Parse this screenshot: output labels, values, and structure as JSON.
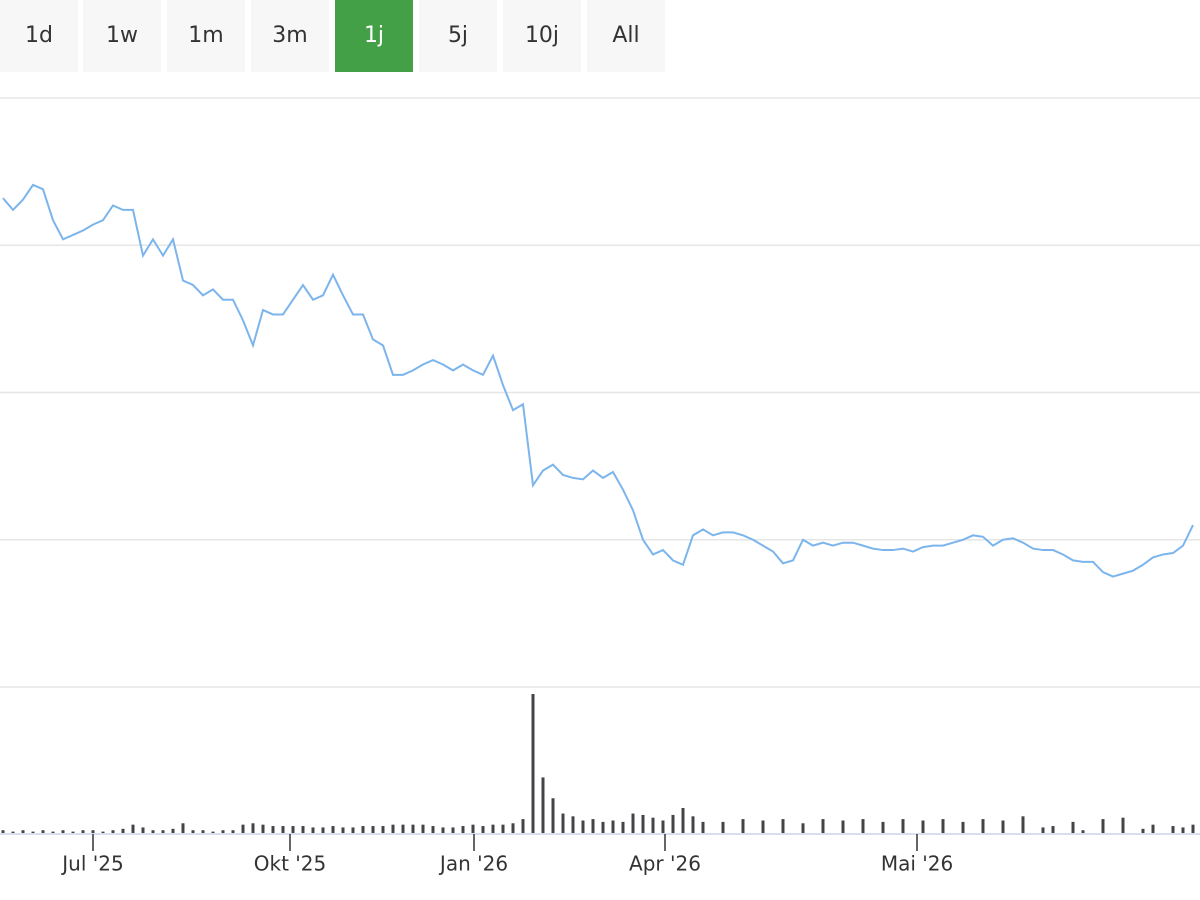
{
  "range_buttons": {
    "labels": [
      "1d",
      "1w",
      "1m",
      "3m",
      "1j",
      "5j",
      "10j",
      "All"
    ],
    "selected": 4
  },
  "chart_data": {
    "type": "line",
    "xlim": [
      0,
      119
    ],
    "xticks": [
      {
        "value": 9,
        "label": "Jul '25"
      },
      {
        "value": 28.7,
        "label": "Okt '25"
      },
      {
        "value": 47.1,
        "label": "Jan '26"
      },
      {
        "value": 66.2,
        "label": "Apr '26"
      },
      {
        "value": 91.4,
        "label": "Mai '26"
      }
    ],
    "ylim": [
      0,
      4
    ],
    "yticks": [
      0,
      1,
      2,
      3,
      4
    ],
    "grid": true,
    "y2lim": [
      0,
      1
    ],
    "series": [
      {
        "color": "#7cb5ec",
        "values": [
          3.32,
          3.24,
          3.31,
          3.41,
          3.38,
          3.17,
          3.04,
          3.07,
          3.1,
          3.14,
          3.17,
          3.27,
          3.24,
          3.24,
          2.93,
          3.04,
          2.93,
          3.04,
          2.76,
          2.73,
          2.66,
          2.7,
          2.63,
          2.63,
          2.49,
          2.32,
          2.56,
          2.53,
          2.53,
          2.63,
          2.73,
          2.63,
          2.66,
          2.8,
          2.66,
          2.53,
          2.53,
          2.36,
          2.32,
          2.12,
          2.12,
          2.15,
          2.19,
          2.22,
          2.19,
          2.15,
          2.19,
          2.15,
          2.12,
          2.25,
          2.05,
          1.88,
          1.92,
          1.37,
          1.47,
          1.51,
          1.44,
          1.42,
          1.41,
          1.47,
          1.42,
          1.46,
          1.34,
          1.2,
          1.0,
          0.9,
          0.93,
          0.86,
          0.83,
          1.03,
          1.07,
          1.03,
          1.05,
          1.05,
          1.03,
          1.0,
          0.96,
          0.92,
          0.84,
          0.86,
          1.0,
          0.96,
          0.98,
          0.96,
          0.98,
          0.98,
          0.96,
          0.94,
          0.93,
          0.93,
          0.94,
          0.92,
          0.95,
          0.96,
          0.96,
          0.98,
          1.0,
          1.03,
          1.02,
          0.96,
          1.0,
          1.01,
          0.98,
          0.94,
          0.93,
          0.93,
          0.9,
          0.86,
          0.85,
          0.85,
          0.78,
          0.75,
          0.77,
          0.79,
          0.83,
          0.88,
          0.9,
          0.91,
          0.96,
          1.1
        ]
      },
      {
        "type": "bar",
        "axis": "y2",
        "color": "#434348",
        "values": [
          0.02,
          0.01,
          0.02,
          0.01,
          0.02,
          0.01,
          0.02,
          0.01,
          0.02,
          0.02,
          0.01,
          0.02,
          0.03,
          0.06,
          0.04,
          0.02,
          0.02,
          0.03,
          0.07,
          0.02,
          0.02,
          0.01,
          0.02,
          0.02,
          0.06,
          0.07,
          0.06,
          0.05,
          0.05,
          0.05,
          0.05,
          0.04,
          0.04,
          0.05,
          0.04,
          0.04,
          0.05,
          0.05,
          0.05,
          0.06,
          0.06,
          0.06,
          0.06,
          0.05,
          0.04,
          0.04,
          0.05,
          0.06,
          0.05,
          0.06,
          0.06,
          0.07,
          0.1,
          1.0,
          0.4,
          0.25,
          0.14,
          0.12,
          0.09,
          0.1,
          0.08,
          0.09,
          0.08,
          0.14,
          0.13,
          0.11,
          0.09,
          0.13,
          0.18,
          0.12,
          0.08,
          0,
          0.08,
          0,
          0.1,
          0,
          0.09,
          0,
          0.1,
          0,
          0.07,
          0,
          0.1,
          0,
          0.09,
          0,
          0.1,
          0,
          0.08,
          0,
          0.1,
          0,
          0.09,
          0,
          0.1,
          0,
          0.08,
          0,
          0.1,
          0,
          0.09,
          0,
          0.12,
          0,
          0.04,
          0.05,
          0,
          0.08,
          0.02,
          0,
          0.1,
          0,
          0.11,
          0,
          0.03,
          0.06,
          0,
          0.05,
          0.04,
          0.06
        ]
      }
    ]
  }
}
